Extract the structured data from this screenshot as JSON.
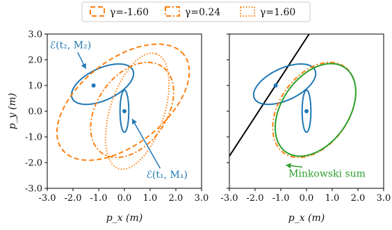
{
  "chart_data": [
    {
      "type": "line",
      "panel": "left",
      "xlabel": "p_x (m)",
      "ylabel": "p_y (m)",
      "xlim": [
        -3.0,
        3.0
      ],
      "ylim": [
        -3.0,
        3.0
      ],
      "xticks": [
        "-3.0",
        "-2.0",
        "-1.0",
        "0.0",
        "1.0",
        "2.0",
        "3.0"
      ],
      "yticks": [
        "-3.0",
        "-2.0",
        "-1.0",
        "0.0",
        "1.0",
        "2.0",
        "3.0"
      ],
      "points": [
        {
          "x": -1.2,
          "y": 1.0,
          "color": "#1f77b4"
        },
        {
          "x": 0.0,
          "y": 0.0,
          "color": "#1f77b4"
        }
      ],
      "ellipses": [
        {
          "name": "E(t2, M2)",
          "color": "#1f77b4",
          "style": "solid",
          "cx": -0.85,
          "cy": 1.05,
          "rx": 1.3,
          "ry": 0.62,
          "angle_deg": 25
        },
        {
          "name": "E(t1, M1)",
          "color": "#1f77b4",
          "style": "solid",
          "cx": 0.0,
          "cy": 0.0,
          "rx": 0.17,
          "ry": 0.82,
          "angle_deg": 0
        },
        {
          "name": "γ=-1.60",
          "color": "#ff7f0e",
          "style": "dashed",
          "cx": -0.05,
          "cy": 0.35,
          "rx": 3.0,
          "ry": 1.65,
          "angle_deg": 38
        },
        {
          "name": "γ=0.24",
          "color": "#ff7f0e",
          "style": "dashdot",
          "cx": 0.3,
          "cy": 0.05,
          "rx": 2.05,
          "ry": 1.35,
          "angle_deg": 55
        },
        {
          "name": "γ=1.60",
          "color": "#ff7f0e",
          "style": "dotted",
          "cx": 0.5,
          "cy": 0.0,
          "rx": 2.35,
          "ry": 1.05,
          "angle_deg": 72
        }
      ],
      "annotations": [
        {
          "text": "ℰ(t₂, M₂)",
          "color": "#1f77b4",
          "x": -2.9,
          "y": 2.45,
          "arrow_to": [
            -1.5,
            1.65
          ]
        },
        {
          "text": "ℰ(t₁, M₁)",
          "color": "#1f77b4",
          "x": 0.85,
          "y": -2.6,
          "arrow_to": [
            0.3,
            -0.3
          ]
        }
      ]
    },
    {
      "type": "line",
      "panel": "right",
      "xlabel": "p_x (m)",
      "ylabel": "",
      "xlim": [
        -3.0,
        3.0
      ],
      "ylim": [
        -3.0,
        3.0
      ],
      "xticks": [
        "-3.0",
        "-2.0",
        "-1.0",
        "0.0",
        "1.0",
        "2.0",
        "3.0"
      ],
      "points": [
        {
          "x": -1.2,
          "y": 1.0,
          "color": "#1f77b4"
        },
        {
          "x": 0.0,
          "y": 0.0,
          "color": "#1f77b4"
        }
      ],
      "lines": [
        {
          "color": "#000000",
          "x": [
            -3.0,
            0.1
          ],
          "y": [
            -1.75,
            3.0
          ]
        }
      ],
      "ellipses": [
        {
          "color": "#1f77b4",
          "style": "solid",
          "cx": -0.85,
          "cy": 1.05,
          "rx": 1.3,
          "ry": 0.62,
          "angle_deg": 25
        },
        {
          "color": "#1f77b4",
          "style": "solid",
          "cx": 0.0,
          "cy": 0.0,
          "rx": 0.17,
          "ry": 0.82,
          "angle_deg": 0
        },
        {
          "name": "γ=0.24",
          "color": "#ff7f0e",
          "style": "dashdot",
          "cx": 0.3,
          "cy": 0.05,
          "rx": 2.05,
          "ry": 1.35,
          "angle_deg": 55
        },
        {
          "name": "Minkowski sum",
          "color": "#2ca02c",
          "style": "solid",
          "cx": 0.35,
          "cy": 0.05,
          "rx": 2.0,
          "ry": 1.3,
          "angle_deg": 55
        }
      ],
      "annotations": [
        {
          "text": "Minkowski sum",
          "color": "#2ca02c",
          "x": -0.7,
          "y": -2.55,
          "arrow_to": [
            -0.8,
            -2.1
          ]
        }
      ]
    }
  ],
  "legend": {
    "placement": "top-center",
    "entries": [
      {
        "label": "γ=-1.60",
        "style": "dashed",
        "color": "#ff7f0e"
      },
      {
        "label": "γ=0.24",
        "style": "dashdot",
        "color": "#ff7f0e"
      },
      {
        "label": "γ=1.60",
        "style": "dotted",
        "color": "#ff7f0e"
      }
    ]
  }
}
